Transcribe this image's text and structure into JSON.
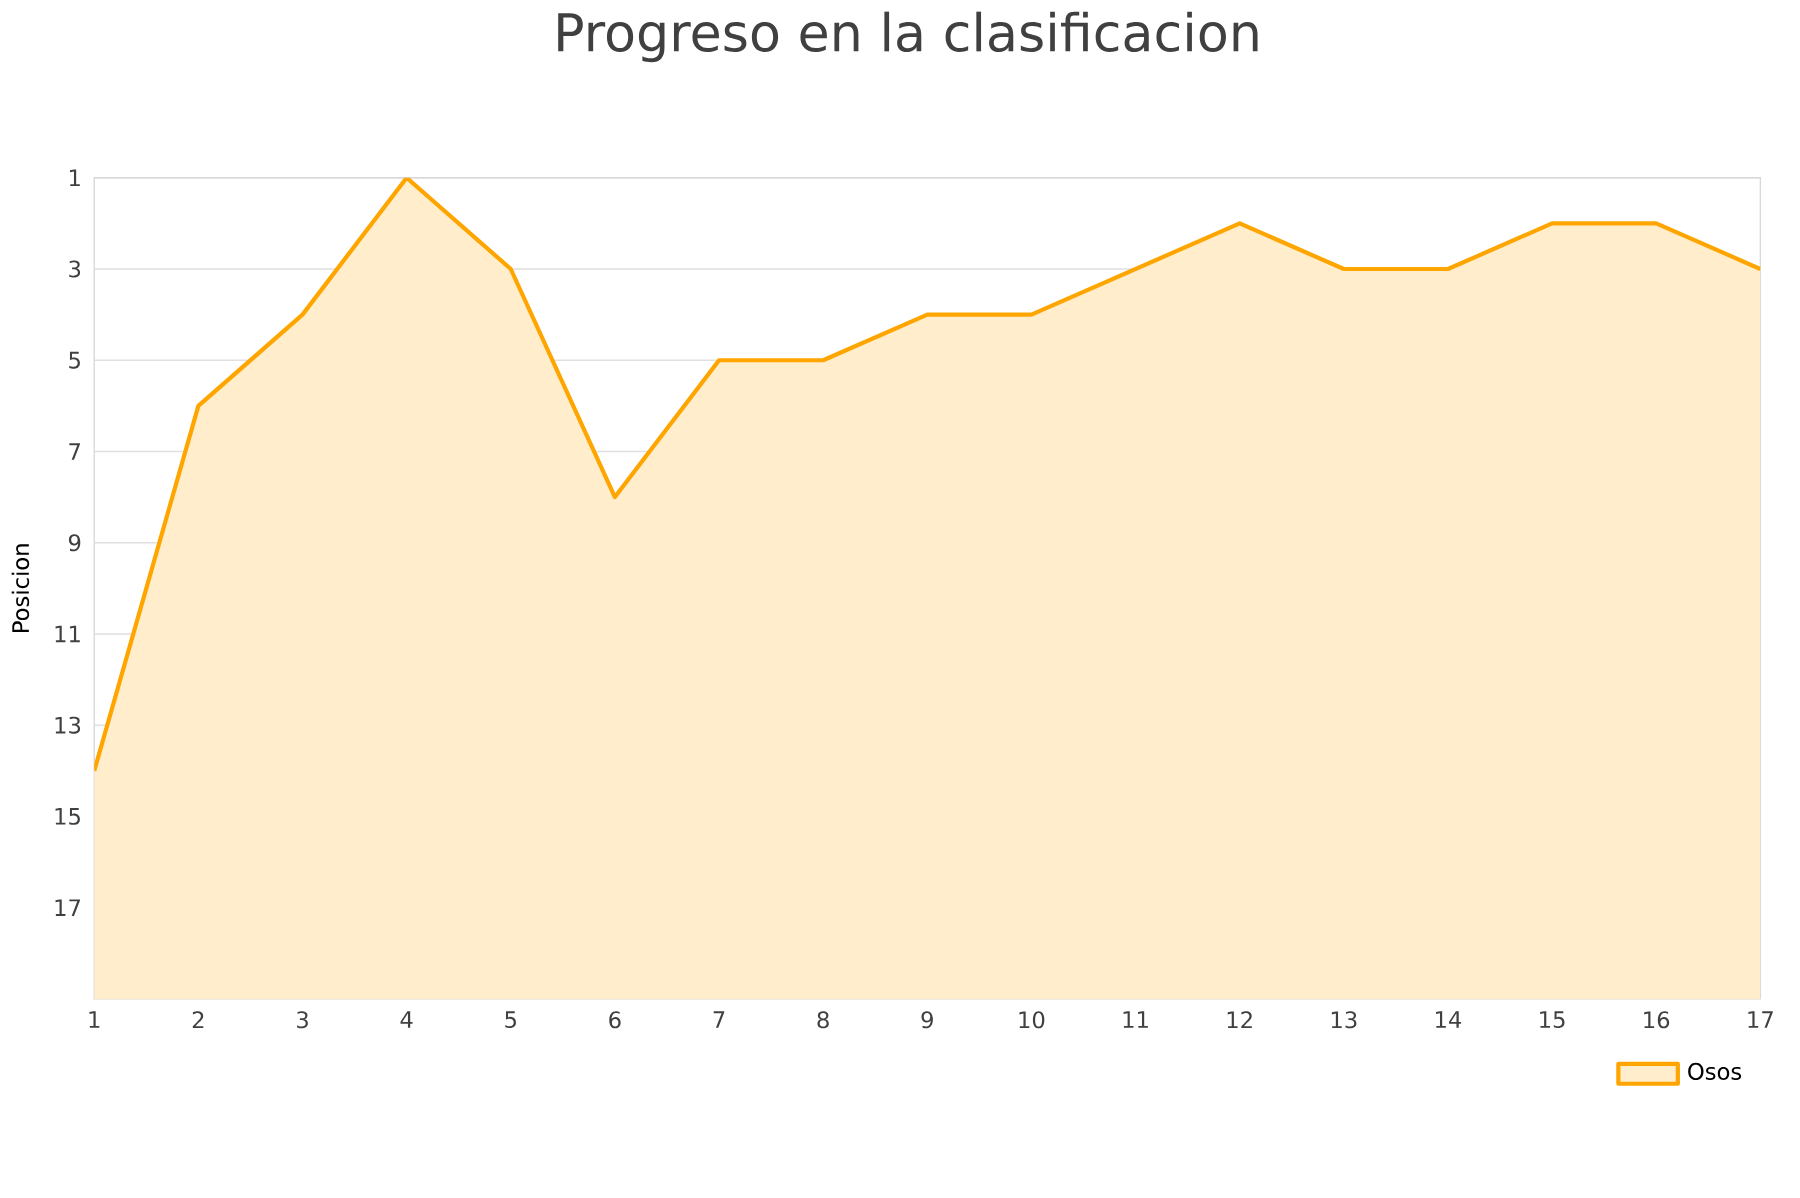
{
  "chart_data": {
    "type": "area",
    "title": "Progreso en la clasificacion",
    "ylabel": "Posicion",
    "x": [
      1,
      2,
      3,
      4,
      5,
      6,
      7,
      8,
      9,
      10,
      11,
      12,
      13,
      14,
      15,
      16,
      17
    ],
    "series": [
      {
        "name": "Osos",
        "color": "#ffa500",
        "values": [
          14,
          6,
          4,
          1,
          3,
          8,
          5,
          5,
          4,
          4,
          3,
          2,
          3,
          3,
          2,
          2,
          3
        ]
      }
    ],
    "xlim": [
      1,
      17
    ],
    "xticks": [
      1,
      2,
      3,
      4,
      5,
      6,
      7,
      8,
      9,
      10,
      11,
      12,
      13,
      14,
      15,
      16,
      17
    ],
    "ylim": [
      19,
      1
    ],
    "yticks": [
      1,
      3,
      5,
      7,
      9,
      11,
      13,
      15,
      17
    ],
    "grid": "y",
    "legend": "bottom right",
    "marker": "none",
    "line_style": "solid"
  }
}
